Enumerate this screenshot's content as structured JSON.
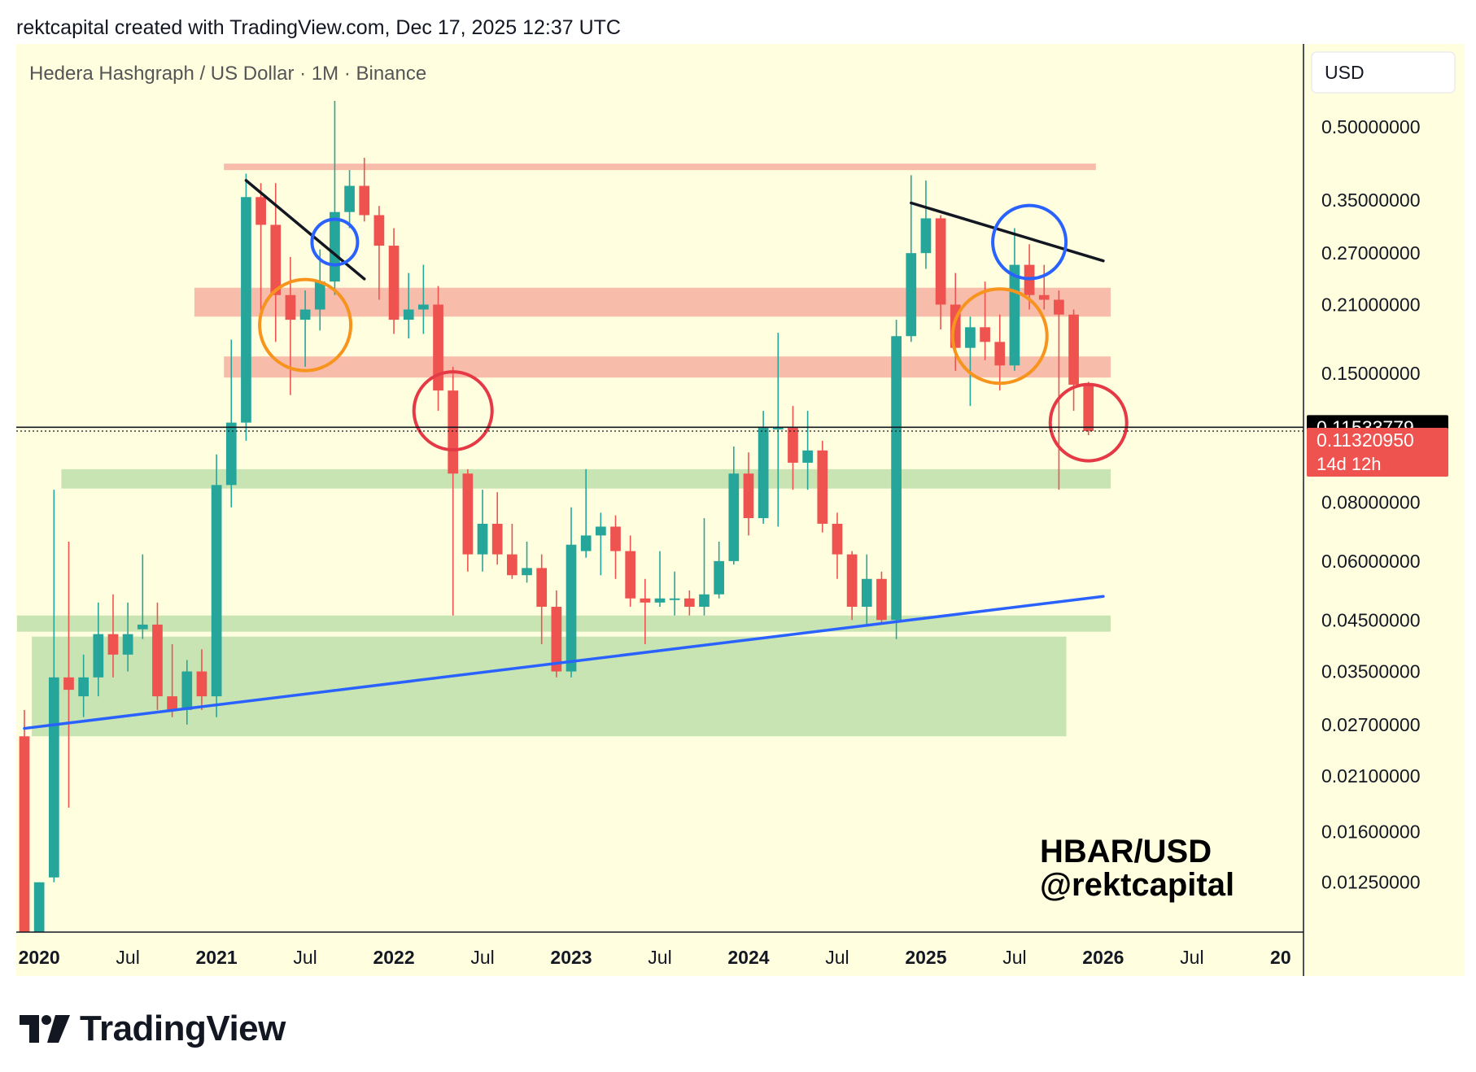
{
  "header": {
    "attribution": "rektcapital created with TradingView.com, Dec 17, 2025 12:37 UTC"
  },
  "footer": {
    "brand": "TradingView"
  },
  "chart_data": {
    "type": "candlestick",
    "title": "Hedera Hashgraph / US Dollar · 1M · Binance",
    "symbol_label": "HBAR/USD",
    "author_label": "@rektcapital",
    "currency_button": "USD",
    "y_scale": "log",
    "ylim": [
      0.0098,
      0.75
    ],
    "xlim": [
      "2019-12",
      "2027-02"
    ],
    "grid": false,
    "background_color": "#ffffe0",
    "up_color": "#26a69a",
    "down_color": "#ef5350",
    "y_ticks": [
      {
        "value": 0.5,
        "label": "0.50000000"
      },
      {
        "value": 0.35,
        "label": "0.35000000"
      },
      {
        "value": 0.27,
        "label": "0.27000000"
      },
      {
        "value": 0.21,
        "label": "0.21000000"
      },
      {
        "value": 0.15,
        "label": "0.15000000"
      },
      {
        "value": 0.08,
        "label": "0.08000000"
      },
      {
        "value": 0.06,
        "label": "0.06000000"
      },
      {
        "value": 0.045,
        "label": "0.04500000"
      },
      {
        "value": 0.035,
        "label": "0.03500000"
      },
      {
        "value": 0.027,
        "label": "0.02700000"
      },
      {
        "value": 0.021,
        "label": "0.02100000"
      },
      {
        "value": 0.016,
        "label": "0.01600000"
      },
      {
        "value": 0.0125,
        "label": "0.01250000"
      }
    ],
    "x_ticks": [
      {
        "x": "2020-01",
        "label": "2020",
        "bold": true
      },
      {
        "x": "2020-07",
        "label": "Jul",
        "bold": false
      },
      {
        "x": "2021-01",
        "label": "2021",
        "bold": true
      },
      {
        "x": "2021-07",
        "label": "Jul",
        "bold": false
      },
      {
        "x": "2022-01",
        "label": "2022",
        "bold": true
      },
      {
        "x": "2022-07",
        "label": "Jul",
        "bold": false
      },
      {
        "x": "2023-01",
        "label": "2023",
        "bold": true
      },
      {
        "x": "2023-07",
        "label": "Jul",
        "bold": false
      },
      {
        "x": "2024-01",
        "label": "2024",
        "bold": true
      },
      {
        "x": "2024-07",
        "label": "Jul",
        "bold": false
      },
      {
        "x": "2025-01",
        "label": "2025",
        "bold": true
      },
      {
        "x": "2025-07",
        "label": "Jul",
        "bold": false
      },
      {
        "x": "2026-01",
        "label": "2026",
        "bold": true
      },
      {
        "x": "2026-07",
        "label": "Jul",
        "bold": false
      },
      {
        "x": "2027-01",
        "label": "20",
        "bold": true
      }
    ],
    "price_labels": [
      {
        "value": 0.11533779,
        "label": "0.11533779",
        "color": "#000000",
        "line": "solid"
      },
      {
        "value": 0.1132095,
        "label": "0.11320950",
        "sublabel": "14d 12h",
        "color": "#ef5350",
        "line": "dotted"
      }
    ],
    "candles": [
      {
        "date": "2019-12",
        "o": 0.0255,
        "h": 0.029,
        "l": 0.0098,
        "c": 0.0098
      },
      {
        "date": "2020-01",
        "o": 0.0098,
        "h": 0.0125,
        "l": 0.0098,
        "c": 0.0125
      },
      {
        "date": "2020-02",
        "o": 0.0128,
        "h": 0.085,
        "l": 0.0125,
        "c": 0.034
      },
      {
        "date": "2020-03",
        "o": 0.034,
        "h": 0.066,
        "l": 0.018,
        "c": 0.032
      },
      {
        "date": "2020-04",
        "o": 0.031,
        "h": 0.038,
        "l": 0.028,
        "c": 0.034
      },
      {
        "date": "2020-05",
        "o": 0.034,
        "h": 0.049,
        "l": 0.031,
        "c": 0.042
      },
      {
        "date": "2020-06",
        "o": 0.042,
        "h": 0.051,
        "l": 0.034,
        "c": 0.038
      },
      {
        "date": "2020-07",
        "o": 0.038,
        "h": 0.049,
        "l": 0.035,
        "c": 0.042
      },
      {
        "date": "2020-08",
        "o": 0.043,
        "h": 0.062,
        "l": 0.041,
        "c": 0.044
      },
      {
        "date": "2020-09",
        "o": 0.044,
        "h": 0.049,
        "l": 0.029,
        "c": 0.031
      },
      {
        "date": "2020-10",
        "o": 0.031,
        "h": 0.04,
        "l": 0.028,
        "c": 0.029
      },
      {
        "date": "2020-11",
        "o": 0.029,
        "h": 0.037,
        "l": 0.027,
        "c": 0.035
      },
      {
        "date": "2020-12",
        "o": 0.035,
        "h": 0.039,
        "l": 0.029,
        "c": 0.031
      },
      {
        "date": "2021-01",
        "o": 0.031,
        "h": 0.101,
        "l": 0.028,
        "c": 0.087
      },
      {
        "date": "2021-02",
        "o": 0.087,
        "h": 0.177,
        "l": 0.078,
        "c": 0.118
      },
      {
        "date": "2021-03",
        "o": 0.118,
        "h": 0.398,
        "l": 0.108,
        "c": 0.355
      },
      {
        "date": "2021-04",
        "o": 0.355,
        "h": 0.38,
        "l": 0.195,
        "c": 0.31
      },
      {
        "date": "2021-05",
        "o": 0.31,
        "h": 0.38,
        "l": 0.175,
        "c": 0.22
      },
      {
        "date": "2021-06",
        "o": 0.22,
        "h": 0.265,
        "l": 0.135,
        "c": 0.195
      },
      {
        "date": "2021-07",
        "o": 0.195,
        "h": 0.225,
        "l": 0.155,
        "c": 0.205
      },
      {
        "date": "2021-08",
        "o": 0.205,
        "h": 0.275,
        "l": 0.185,
        "c": 0.235
      },
      {
        "date": "2021-09",
        "o": 0.235,
        "h": 0.568,
        "l": 0.22,
        "c": 0.33
      },
      {
        "date": "2021-10",
        "o": 0.33,
        "h": 0.405,
        "l": 0.305,
        "c": 0.375
      },
      {
        "date": "2021-11",
        "o": 0.375,
        "h": 0.43,
        "l": 0.315,
        "c": 0.325
      },
      {
        "date": "2021-12",
        "o": 0.325,
        "h": 0.34,
        "l": 0.215,
        "c": 0.28
      },
      {
        "date": "2022-01",
        "o": 0.28,
        "h": 0.305,
        "l": 0.182,
        "c": 0.195
      },
      {
        "date": "2022-02",
        "o": 0.195,
        "h": 0.245,
        "l": 0.178,
        "c": 0.205
      },
      {
        "date": "2022-03",
        "o": 0.205,
        "h": 0.255,
        "l": 0.182,
        "c": 0.21
      },
      {
        "date": "2022-04",
        "o": 0.21,
        "h": 0.23,
        "l": 0.125,
        "c": 0.138
      },
      {
        "date": "2022-05",
        "o": 0.138,
        "h": 0.155,
        "l": 0.046,
        "c": 0.092
      },
      {
        "date": "2022-06",
        "o": 0.092,
        "h": 0.094,
        "l": 0.057,
        "c": 0.062
      },
      {
        "date": "2022-07",
        "o": 0.062,
        "h": 0.085,
        "l": 0.057,
        "c": 0.072
      },
      {
        "date": "2022-08",
        "o": 0.072,
        "h": 0.084,
        "l": 0.059,
        "c": 0.062
      },
      {
        "date": "2022-09",
        "o": 0.062,
        "h": 0.072,
        "l": 0.055,
        "c": 0.056
      },
      {
        "date": "2022-10",
        "o": 0.056,
        "h": 0.066,
        "l": 0.054,
        "c": 0.058
      },
      {
        "date": "2022-11",
        "o": 0.058,
        "h": 0.062,
        "l": 0.04,
        "c": 0.048
      },
      {
        "date": "2022-12",
        "o": 0.048,
        "h": 0.052,
        "l": 0.034,
        "c": 0.035
      },
      {
        "date": "2023-01",
        "o": 0.035,
        "h": 0.078,
        "l": 0.034,
        "c": 0.065
      },
      {
        "date": "2023-02",
        "o": 0.063,
        "h": 0.094,
        "l": 0.061,
        "c": 0.068
      },
      {
        "date": "2023-03",
        "o": 0.068,
        "h": 0.076,
        "l": 0.056,
        "c": 0.071
      },
      {
        "date": "2023-04",
        "o": 0.071,
        "h": 0.075,
        "l": 0.055,
        "c": 0.063
      },
      {
        "date": "2023-05",
        "o": 0.063,
        "h": 0.068,
        "l": 0.048,
        "c": 0.05
      },
      {
        "date": "2023-06",
        "o": 0.05,
        "h": 0.055,
        "l": 0.04,
        "c": 0.049
      },
      {
        "date": "2023-07",
        "o": 0.049,
        "h": 0.063,
        "l": 0.048,
        "c": 0.05
      },
      {
        "date": "2023-08",
        "o": 0.05,
        "h": 0.057,
        "l": 0.046,
        "c": 0.05
      },
      {
        "date": "2023-09",
        "o": 0.05,
        "h": 0.052,
        "l": 0.046,
        "c": 0.048
      },
      {
        "date": "2023-10",
        "o": 0.048,
        "h": 0.074,
        "l": 0.046,
        "c": 0.051
      },
      {
        "date": "2023-11",
        "o": 0.051,
        "h": 0.066,
        "l": 0.05,
        "c": 0.06
      },
      {
        "date": "2023-12",
        "o": 0.06,
        "h": 0.105,
        "l": 0.059,
        "c": 0.092
      },
      {
        "date": "2024-01",
        "o": 0.092,
        "h": 0.102,
        "l": 0.068,
        "c": 0.074
      },
      {
        "date": "2024-02",
        "o": 0.074,
        "h": 0.125,
        "l": 0.072,
        "c": 0.115
      },
      {
        "date": "2024-03",
        "o": 0.115,
        "h": 0.183,
        "l": 0.071,
        "c": 0.115
      },
      {
        "date": "2024-04",
        "o": 0.115,
        "h": 0.128,
        "l": 0.085,
        "c": 0.097
      },
      {
        "date": "2024-05",
        "o": 0.097,
        "h": 0.125,
        "l": 0.085,
        "c": 0.103
      },
      {
        "date": "2024-06",
        "o": 0.103,
        "h": 0.108,
        "l": 0.069,
        "c": 0.072
      },
      {
        "date": "2024-07",
        "o": 0.072,
        "h": 0.076,
        "l": 0.055,
        "c": 0.062
      },
      {
        "date": "2024-08",
        "o": 0.062,
        "h": 0.063,
        "l": 0.045,
        "c": 0.048
      },
      {
        "date": "2024-09",
        "o": 0.048,
        "h": 0.062,
        "l": 0.044,
        "c": 0.055
      },
      {
        "date": "2024-10",
        "o": 0.055,
        "h": 0.057,
        "l": 0.044,
        "c": 0.045
      },
      {
        "date": "2024-11",
        "o": 0.045,
        "h": 0.195,
        "l": 0.041,
        "c": 0.18
      },
      {
        "date": "2024-12",
        "o": 0.18,
        "h": 0.395,
        "l": 0.175,
        "c": 0.27
      },
      {
        "date": "2025-01",
        "o": 0.27,
        "h": 0.385,
        "l": 0.25,
        "c": 0.32
      },
      {
        "date": "2025-02",
        "o": 0.32,
        "h": 0.325,
        "l": 0.186,
        "c": 0.21
      },
      {
        "date": "2025-03",
        "o": 0.21,
        "h": 0.245,
        "l": 0.152,
        "c": 0.17
      },
      {
        "date": "2025-04",
        "o": 0.17,
        "h": 0.198,
        "l": 0.128,
        "c": 0.188
      },
      {
        "date": "2025-05",
        "o": 0.188,
        "h": 0.235,
        "l": 0.16,
        "c": 0.175
      },
      {
        "date": "2025-06",
        "o": 0.175,
        "h": 0.2,
        "l": 0.138,
        "c": 0.156
      },
      {
        "date": "2025-07",
        "o": 0.156,
        "h": 0.305,
        "l": 0.152,
        "c": 0.255
      },
      {
        "date": "2025-08",
        "o": 0.255,
        "h": 0.282,
        "l": 0.205,
        "c": 0.22
      },
      {
        "date": "2025-09",
        "o": 0.22,
        "h": 0.255,
        "l": 0.205,
        "c": 0.215
      },
      {
        "date": "2025-10",
        "o": 0.215,
        "h": 0.225,
        "l": 0.085,
        "c": 0.2
      },
      {
        "date": "2025-11",
        "o": 0.2,
        "h": 0.205,
        "l": 0.125,
        "c": 0.142
      },
      {
        "date": "2025-12",
        "o": 0.142,
        "h": 0.144,
        "l": 0.111,
        "c": 0.1132
      }
    ],
    "zones": [
      {
        "color": "#f8b8a8",
        "x": [
          "2021-02",
          "2025-12"
        ],
        "y": [
          0.405,
          0.418
        ]
      },
      {
        "color": "#f8b8a8",
        "x": [
          "2020-12",
          "2026-01"
        ],
        "y": [
          0.198,
          0.228
        ]
      },
      {
        "color": "#f8b8a8",
        "x": [
          "2021-02",
          "2026-01"
        ],
        "y": [
          0.147,
          0.163
        ]
      },
      {
        "color": "#c5e3b0",
        "x": [
          "2020-03",
          "2026-01"
        ],
        "y": [
          0.0855,
          0.094
        ]
      },
      {
        "color": "#c5e3b0",
        "x": [
          "2019-12",
          "2026-01"
        ],
        "y": [
          0.0425,
          0.046
        ]
      },
      {
        "color": "#c5e3b0",
        "x": [
          "2020-01",
          "2025-10"
        ],
        "y": [
          0.0255,
          0.0415
        ]
      }
    ],
    "trendlines": [
      {
        "color": "#131722",
        "width": 3.5,
        "from": {
          "x": "2021-03",
          "y": 0.385
        },
        "to": {
          "x": "2021-11",
          "y": 0.238
        }
      },
      {
        "color": "#131722",
        "width": 3.5,
        "from": {
          "x": "2024-12",
          "y": 0.345
        },
        "to": {
          "x": "2026-01",
          "y": 0.26
        }
      },
      {
        "color": "#2962ff",
        "width": 3.5,
        "from": {
          "x": "2019-12",
          "y": 0.0265
        },
        "to": {
          "x": "2026-01",
          "y": 0.0505
        }
      }
    ],
    "circles": [
      {
        "color": "#f7941d",
        "x": "2021-07",
        "y": 0.19,
        "r": 56
      },
      {
        "color": "#2962ff",
        "x": "2021-09",
        "y": 0.285,
        "r": 28
      },
      {
        "color": "#e53945",
        "x": "2022-05",
        "y": 0.125,
        "r": 48
      },
      {
        "color": "#f7941d",
        "x": "2025-06",
        "y": 0.18,
        "r": 58
      },
      {
        "color": "#2962ff",
        "x": "2025-08",
        "y": 0.285,
        "r": 45
      },
      {
        "color": "#e53945",
        "x": "2025-12",
        "y": 0.118,
        "r": 47
      }
    ]
  }
}
